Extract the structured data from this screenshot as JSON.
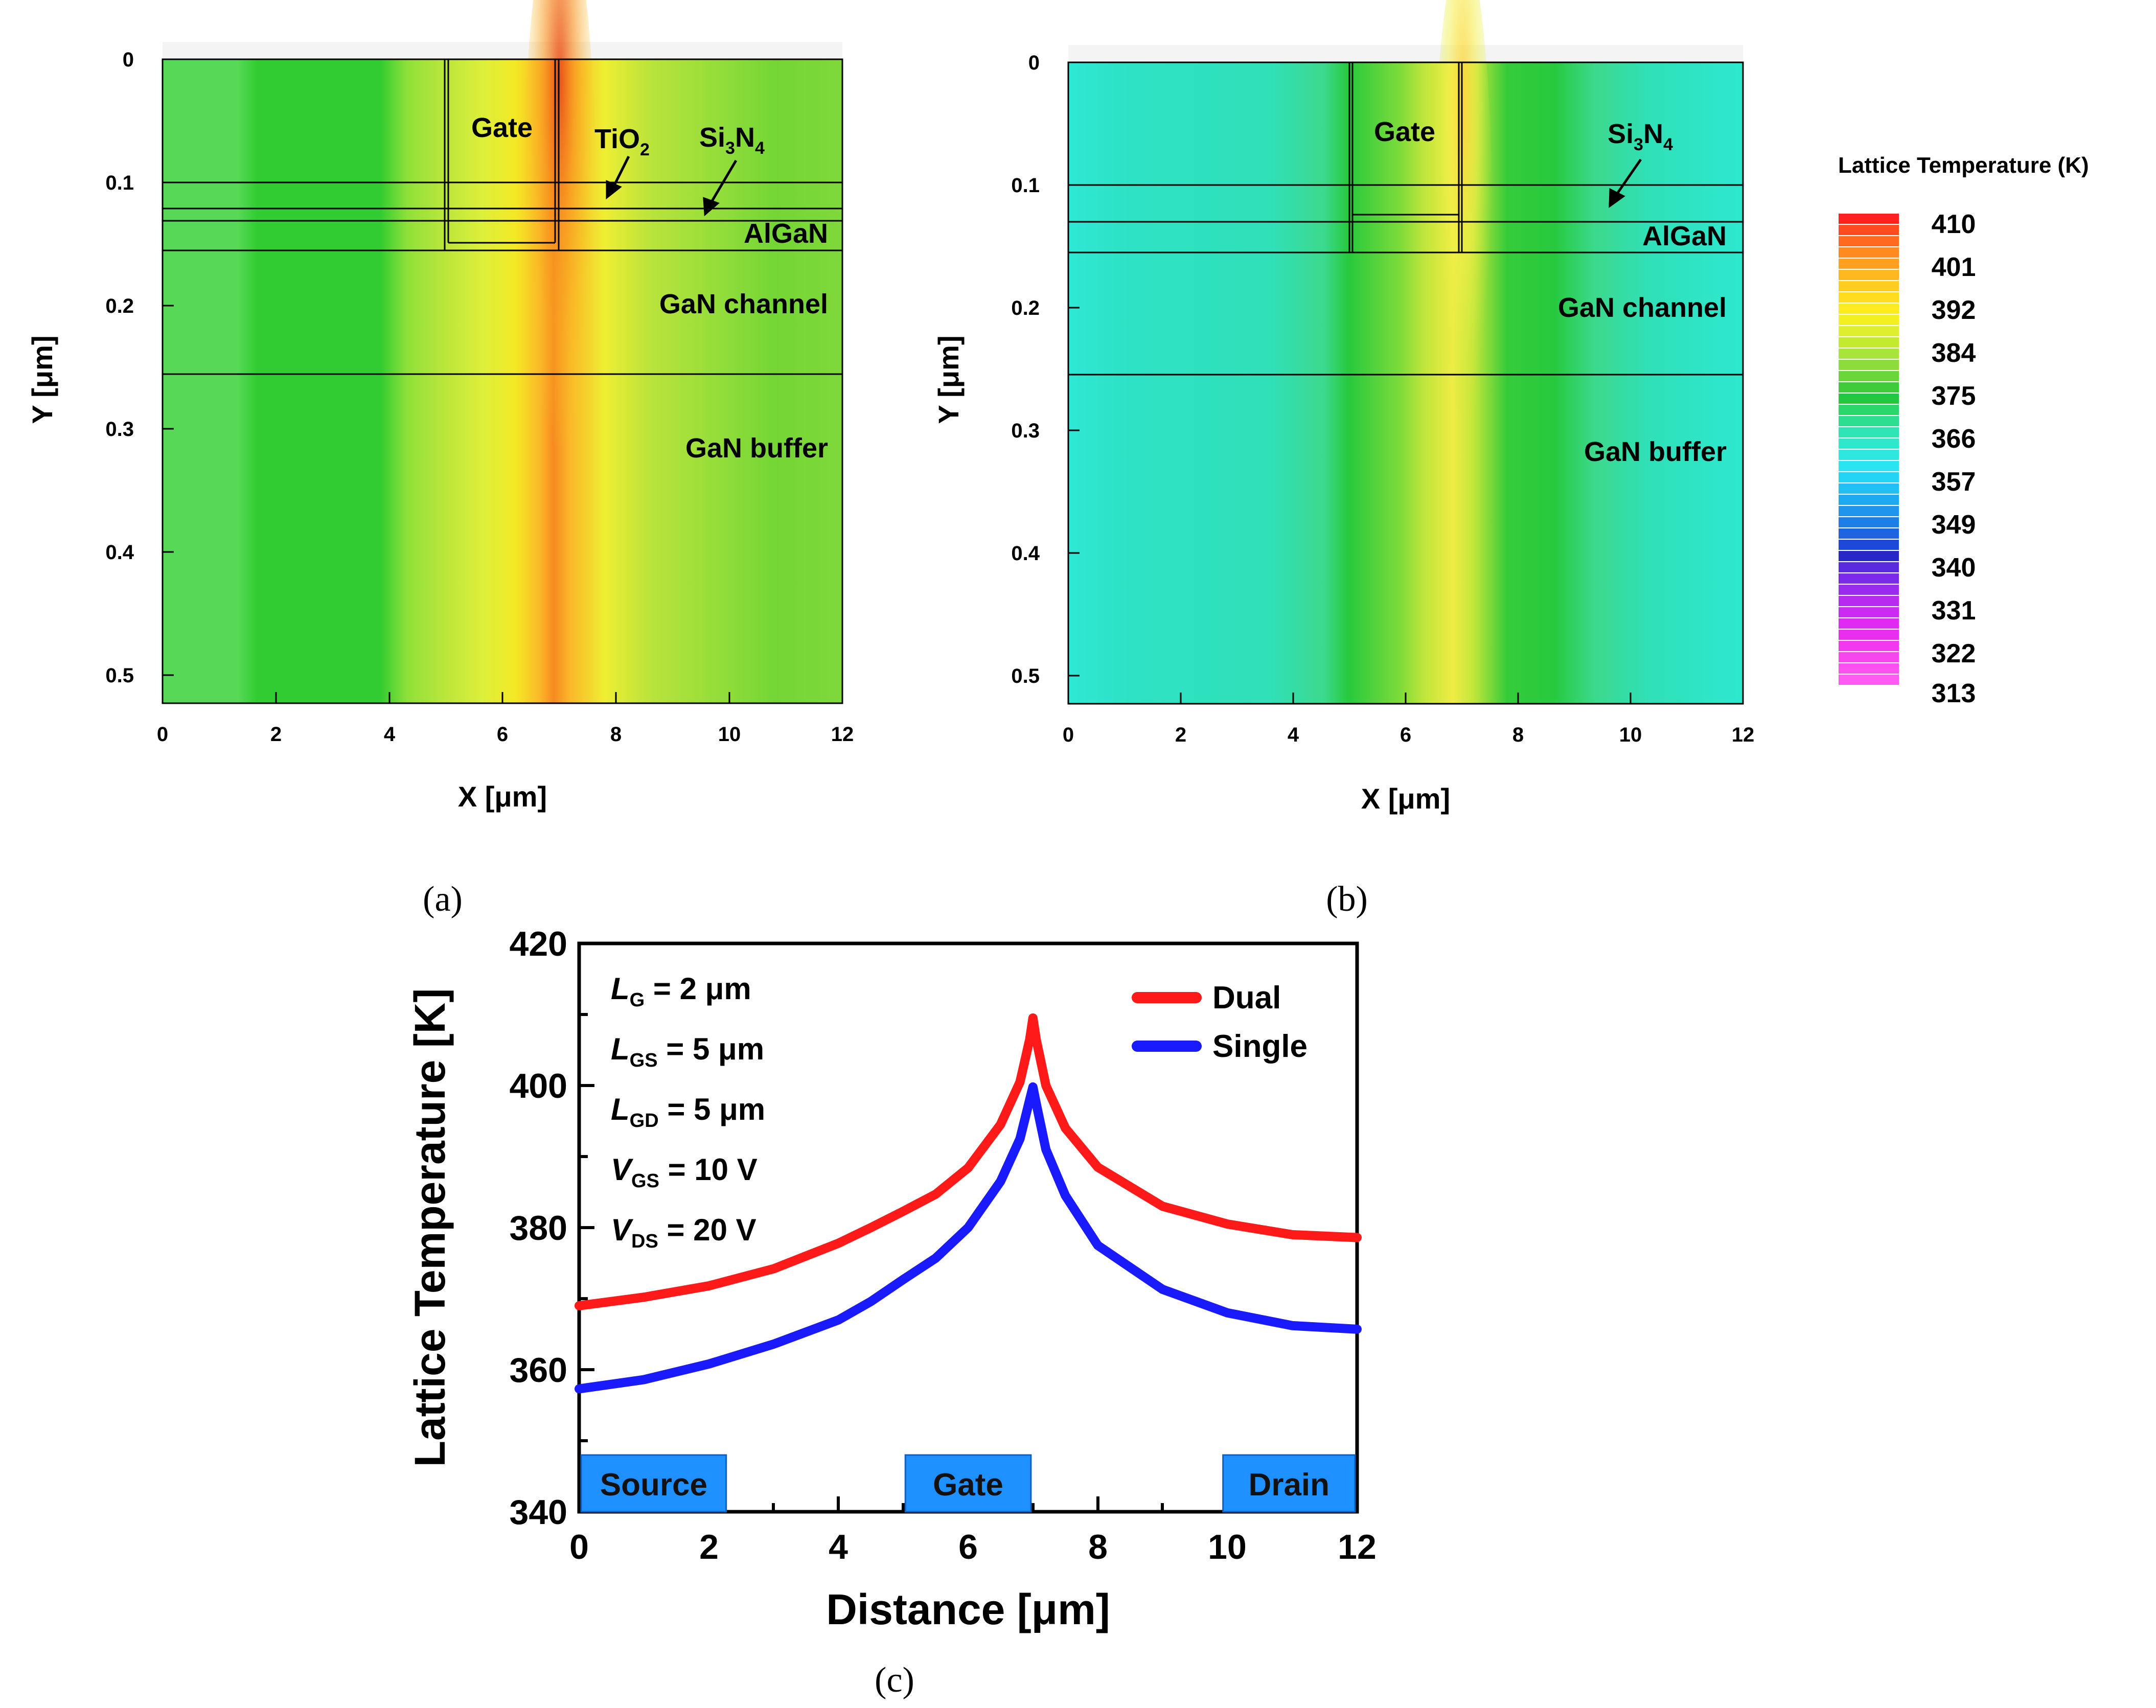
{
  "chart_data": [
    {
      "panel": "(a)",
      "type": "heatmap",
      "xlabel": "X [μm]",
      "ylabel": "Y [μm]",
      "xlim": [
        0,
        12
      ],
      "ylim": [
        0,
        0.52
      ],
      "x_ticks": [
        "0",
        "2",
        "4",
        "6",
        "8",
        "10",
        "12"
      ],
      "y_ticks": [
        "0",
        "0.1",
        "0.2",
        "0.3",
        "0.4",
        "0.5"
      ],
      "layers": {
        "gate": "Gate",
        "tio2": "TiO",
        "tio2_sub": "2",
        "si3n4_a": "Si",
        "si3n4_b": "3",
        "si3n4_c": "N",
        "si3n4_d": "4",
        "algan": "AlGaN",
        "channel": "GaN channel",
        "buffer": "GaN buffer"
      },
      "peak_temperature_K": 410
    },
    {
      "panel": "(b)",
      "type": "heatmap",
      "xlabel": "X [μm]",
      "ylabel": "Y [μm]",
      "xlim": [
        0,
        12
      ],
      "ylim": [
        0,
        0.52
      ],
      "x_ticks": [
        "0",
        "2",
        "4",
        "6",
        "8",
        "10",
        "12"
      ],
      "y_ticks": [
        "0",
        "0.1",
        "0.2",
        "0.3",
        "0.4",
        "0.5"
      ],
      "layers": {
        "gate": "Gate",
        "si3n4_a": "Si",
        "si3n4_b": "3",
        "si3n4_c": "N",
        "si3n4_d": "4",
        "algan": "AlGaN",
        "channel": "GaN channel",
        "buffer": "GaN buffer"
      },
      "peak_temperature_K": 400
    },
    {
      "panel": "colorbar",
      "type": "table",
      "title": "Lattice Temperature (K)",
      "levels": [
        "410",
        "401",
        "392",
        "384",
        "375",
        "366",
        "357",
        "349",
        "340",
        "331",
        "322",
        "313"
      ]
    },
    {
      "panel": "(c)",
      "type": "line",
      "xlabel": "Distance [μm]",
      "ylabel": "Lattice Temperature [K]",
      "xlim": [
        0,
        12
      ],
      "ylim": [
        340,
        420
      ],
      "x_ticks": [
        "0",
        "2",
        "4",
        "6",
        "8",
        "10",
        "12"
      ],
      "y_ticks": [
        "340",
        "360",
        "380",
        "400",
        "420"
      ],
      "series": [
        {
          "name": "Dual",
          "color": "#ff1a1a",
          "x": [
            0,
            1,
            2,
            3,
            4,
            4.5,
            5,
            5.5,
            6,
            6.5,
            6.8,
            6.95,
            7.0,
            7.05,
            7.2,
            7.5,
            8,
            9,
            10,
            11,
            12
          ],
          "y": [
            369,
            370.2,
            371.8,
            374.2,
            377.8,
            380,
            382.3,
            384.7,
            388.4,
            394.5,
            400.5,
            406.5,
            409.5,
            406.5,
            400,
            394,
            388.5,
            383,
            380.5,
            379,
            378.6
          ]
        },
        {
          "name": "Single",
          "color": "#1a1aff",
          "x": [
            0,
            1,
            2,
            3,
            4,
            4.5,
            5,
            5.5,
            6,
            6.5,
            6.8,
            6.95,
            7.0,
            7.05,
            7.2,
            7.5,
            8,
            9,
            10,
            11,
            12
          ],
          "y": [
            357.3,
            358.6,
            360.8,
            363.6,
            367,
            369.6,
            372.7,
            375.7,
            380,
            386.5,
            392.5,
            398,
            399.8,
            397.5,
            391,
            384.5,
            377.5,
            371.3,
            368,
            366.2,
            365.7
          ]
        }
      ],
      "params": [
        {
          "sym": "L",
          "sub": "G",
          "val": " = 2 μm"
        },
        {
          "sym": "L",
          "sub": "GS",
          "val": " = 5 μm"
        },
        {
          "sym": "L",
          "sub": "GD",
          "val": " = 5 μm"
        },
        {
          "sym": "V",
          "sub": "GS",
          "val": " = 10 V"
        },
        {
          "sym": "V",
          "sub": "DS",
          "val": " = 20 V"
        }
      ],
      "regions": [
        {
          "label": "Source",
          "x0": 0,
          "x1": 2.3
        },
        {
          "label": "Gate",
          "x0": 5,
          "x1": 7
        },
        {
          "label": "Drain",
          "x0": 9.9,
          "x1": 12
        }
      ],
      "region_color": "#1e90ff"
    }
  ]
}
